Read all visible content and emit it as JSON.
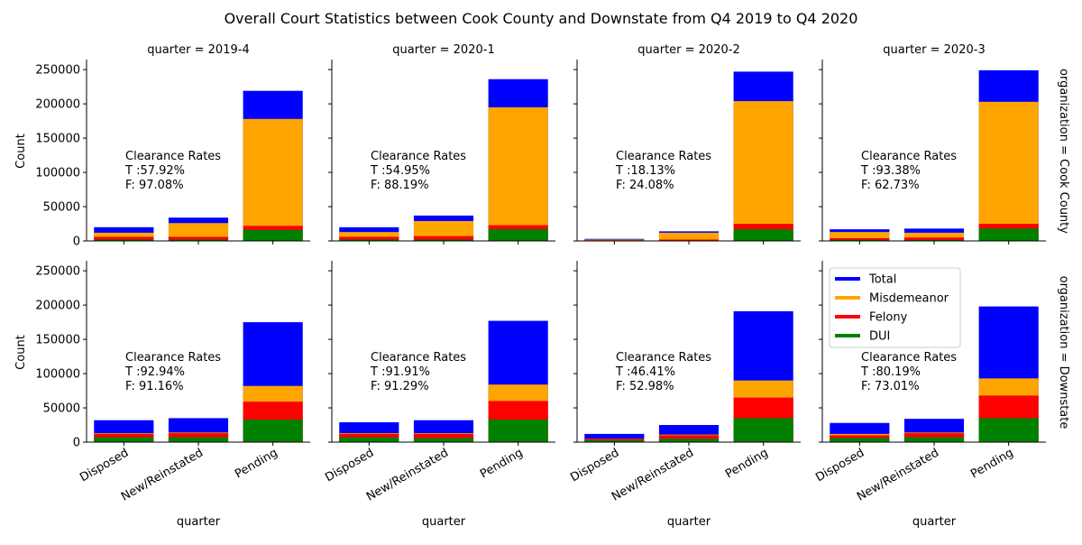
{
  "title": "Overall Court Statistics between Cook County and Downstate from Q4 2019 to Q4 2020",
  "colors": {
    "Total": "#0000ff",
    "Misdemeanor": "#ffa500",
    "Felony": "#ff0000",
    "DUI": "#008000"
  },
  "chart_data": {
    "type": "bar",
    "categories": [
      "Disposed",
      "New/Reinstated",
      "Pending"
    ],
    "stack_order": [
      "Total",
      "Misdemeanor",
      "Felony",
      "DUI"
    ],
    "xlabel": "quarter",
    "ylabel": "Count",
    "ylim": [
      0,
      262000
    ],
    "yticks": [
      0,
      50000,
      100000,
      150000,
      200000,
      250000
    ],
    "legend": {
      "placement": "upper-left of last panel",
      "entries": [
        "Total",
        "Misdemeanor",
        "Felony",
        "DUI"
      ]
    },
    "panels": [
      {
        "col_title": "quarter = 2019-4",
        "row_label": "organization = Cook County",
        "clearance": [
          "Clearance Rates",
          "T :57.92%",
          "F: 97.08%"
        ],
        "values": {
          "Total": [
            20000,
            34000,
            219000
          ],
          "Misdemeanor": [
            12000,
            26000,
            178000
          ],
          "Felony": [
            6000,
            6000,
            22000
          ],
          "DUI": [
            2000,
            2000,
            16000
          ]
        }
      },
      {
        "col_title": "quarter = 2020-1",
        "row_label": "organization = Cook County",
        "clearance": [
          "Clearance Rates",
          "T :54.95%",
          "F: 88.19%"
        ],
        "values": {
          "Total": [
            20000,
            37000,
            236000
          ],
          "Misdemeanor": [
            13000,
            29000,
            195000
          ],
          "Felony": [
            6000,
            7000,
            23000
          ],
          "DUI": [
            2000,
            2000,
            17000
          ]
        }
      },
      {
        "col_title": "quarter = 2020-2",
        "row_label": "organization = Cook County",
        "clearance": [
          "Clearance Rates",
          "T :18.13%",
          "F: 24.08%"
        ],
        "values": {
          "Total": [
            3000,
            14000,
            247000
          ],
          "Misdemeanor": [
            2000,
            12000,
            204000
          ],
          "Felony": [
            1000,
            2000,
            25000
          ],
          "DUI": [
            500,
            500,
            17000
          ]
        }
      },
      {
        "col_title": "quarter = 2020-3",
        "row_label": "organization = Cook County",
        "clearance": [
          "Clearance Rates",
          "T :93.38%",
          "F: 62.73%"
        ],
        "values": {
          "Total": [
            17000,
            18000,
            249000
          ],
          "Misdemeanor": [
            13000,
            12000,
            203000
          ],
          "Felony": [
            4000,
            5000,
            25000
          ],
          "DUI": [
            1500,
            1500,
            18000
          ]
        }
      },
      {
        "col_title": "quarter = 2019-4",
        "row_label": "organization = Downstate",
        "clearance": [
          "Clearance Rates",
          "T :92.94%",
          "F: 91.16%"
        ],
        "values": {
          "Total": [
            32000,
            35000,
            175000
          ],
          "Misdemeanor": [
            13000,
            14000,
            82000
          ],
          "Felony": [
            12000,
            13000,
            59000
          ],
          "DUI": [
            7000,
            7000,
            33000
          ]
        }
      },
      {
        "col_title": "quarter = 2020-1",
        "row_label": "organization = Downstate",
        "clearance": [
          "Clearance Rates",
          "T :91.91%",
          "F: 91.29%"
        ],
        "values": {
          "Total": [
            29000,
            32000,
            177000
          ],
          "Misdemeanor": [
            13000,
            13000,
            84000
          ],
          "Felony": [
            12000,
            12000,
            60000
          ],
          "DUI": [
            7000,
            6000,
            33000
          ]
        }
      },
      {
        "col_title": "quarter = 2020-2",
        "row_label": "organization = Downstate",
        "clearance": [
          "Clearance Rates",
          "T :46.41%",
          "F: 52.98%"
        ],
        "values": {
          "Total": [
            12000,
            25000,
            191000
          ],
          "Misdemeanor": [
            5000,
            11000,
            90000
          ],
          "Felony": [
            5000,
            10000,
            65000
          ],
          "DUI": [
            3000,
            5000,
            35000
          ]
        }
      },
      {
        "col_title": "quarter = 2020-3",
        "row_label": "organization = Downstate",
        "clearance": [
          "Clearance Rates",
          "T :80.19%",
          "F: 73.01%"
        ],
        "values": {
          "Total": [
            28000,
            34000,
            198000
          ],
          "Misdemeanor": [
            12000,
            14000,
            93000
          ],
          "Felony": [
            10000,
            13000,
            68000
          ],
          "DUI": [
            6000,
            7000,
            35000
          ]
        }
      }
    ]
  }
}
